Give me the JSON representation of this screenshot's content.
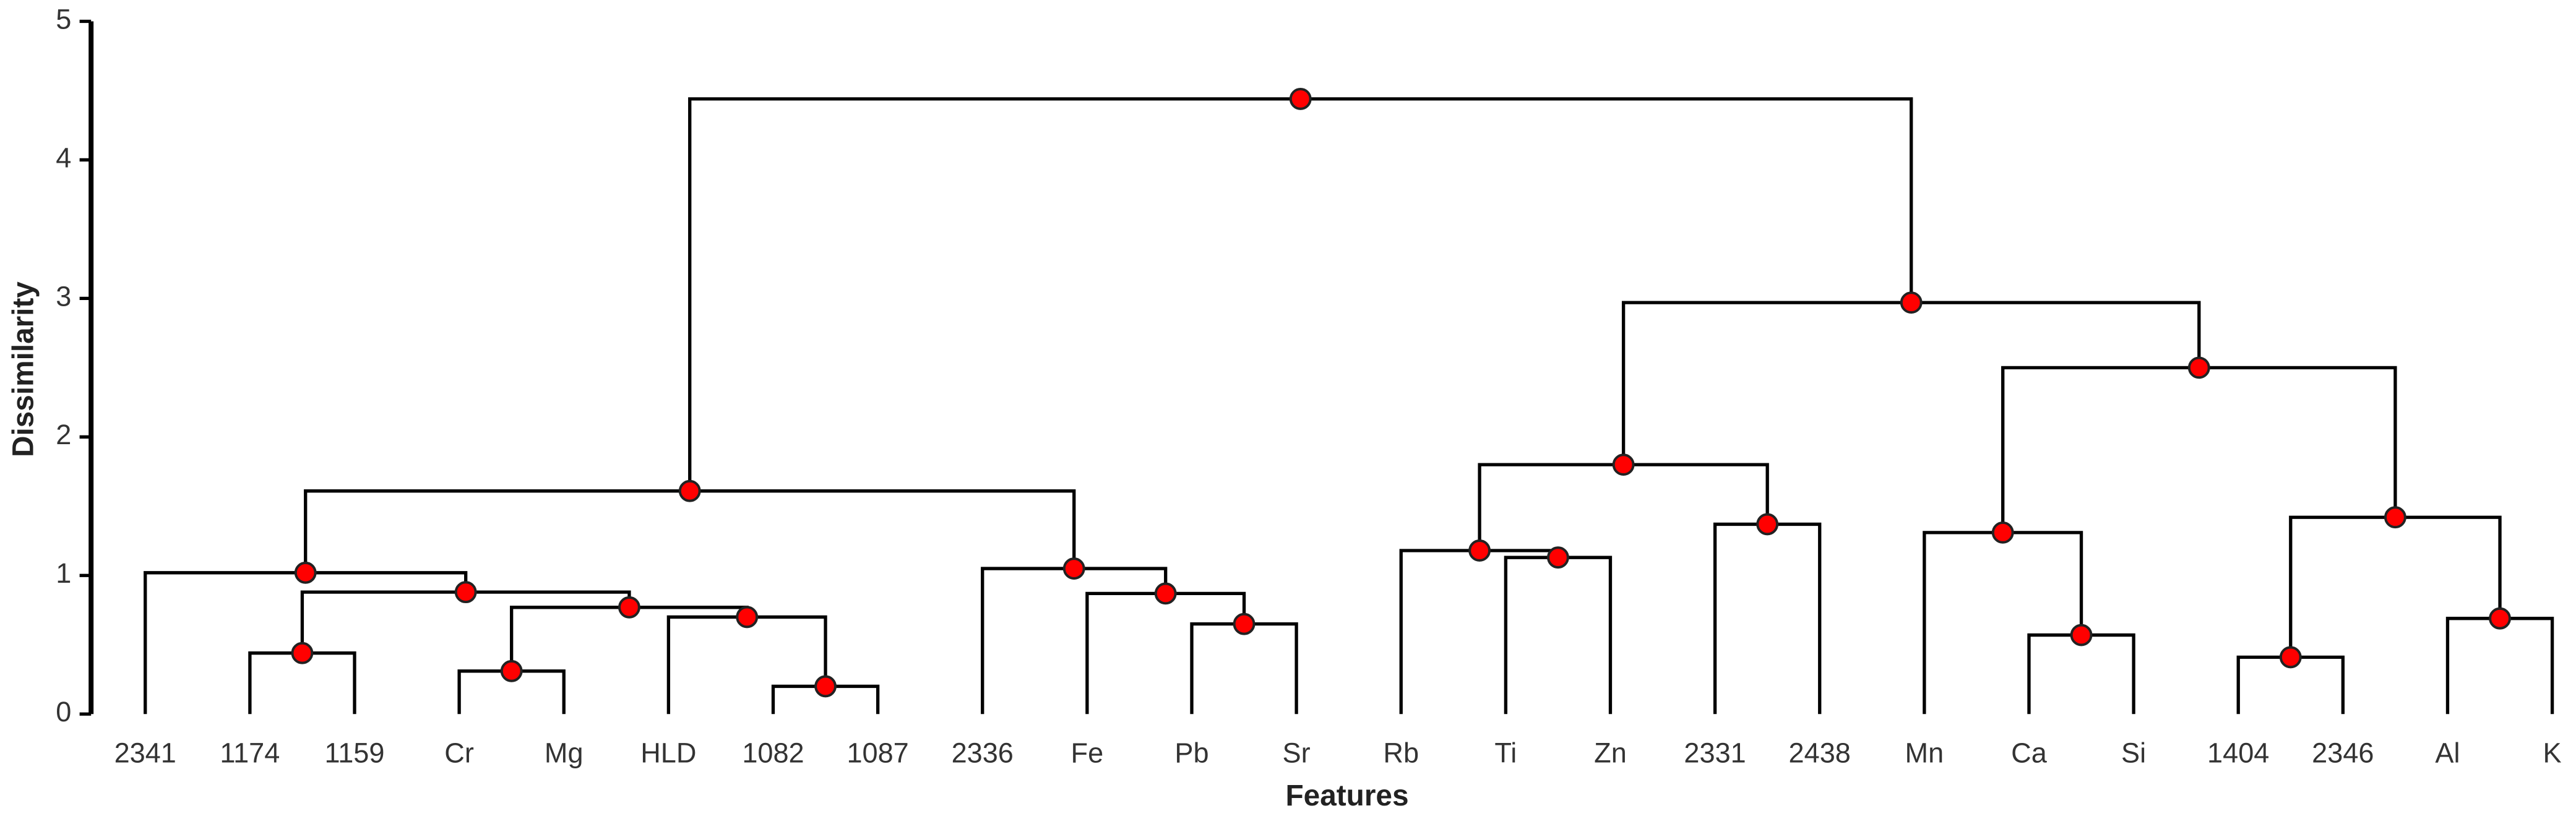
{
  "chart_data": {
    "type": "dendrogram",
    "x_label": "Features",
    "y_label": "Dissimilarity",
    "ylim": [
      0,
      5
    ],
    "yticks": [
      0,
      1,
      2,
      3,
      4,
      5
    ],
    "leaves": [
      "2341",
      "1174",
      "1159",
      "Cr",
      "Mg",
      "HLD",
      "1082",
      "1087",
      "2336",
      "Fe",
      "Pb",
      "Sr",
      "Rb",
      "Ti",
      "Zn",
      "2331",
      "2438",
      "Mn",
      "Ca",
      "Si",
      "1404",
      "2346",
      "Al",
      "K"
    ],
    "merges": [
      {
        "children": [
          1,
          2
        ],
        "height": 0.44
      },
      {
        "children": [
          3,
          4
        ],
        "height": 0.31
      },
      {
        "children": [
          6,
          7
        ],
        "height": 0.2
      },
      {
        "children": [
          5,
          26
        ],
        "height": 0.7
      },
      {
        "children": [
          25,
          27
        ],
        "height": 0.77
      },
      {
        "children": [
          24,
          28
        ],
        "height": 0.88
      },
      {
        "children": [
          0,
          29
        ],
        "height": 1.02
      },
      {
        "children": [
          10,
          11
        ],
        "height": 0.65
      },
      {
        "children": [
          9,
          31
        ],
        "height": 0.87
      },
      {
        "children": [
          8,
          32
        ],
        "height": 1.05
      },
      {
        "children": [
          30,
          33
        ],
        "height": 1.61
      },
      {
        "children": [
          13,
          14
        ],
        "height": 1.13
      },
      {
        "children": [
          12,
          35
        ],
        "height": 1.18
      },
      {
        "children": [
          15,
          16
        ],
        "height": 1.37
      },
      {
        "children": [
          36,
          37
        ],
        "height": 1.8
      },
      {
        "children": [
          18,
          19
        ],
        "height": 0.57
      },
      {
        "children": [
          17,
          39
        ],
        "height": 1.31
      },
      {
        "children": [
          20,
          21
        ],
        "height": 0.41
      },
      {
        "children": [
          22,
          23
        ],
        "height": 0.69
      },
      {
        "children": [
          41,
          42
        ],
        "height": 1.42
      },
      {
        "children": [
          40,
          43
        ],
        "height": 2.5
      },
      {
        "children": [
          38,
          44
        ],
        "height": 2.97
      },
      {
        "children": [
          34,
          45
        ],
        "height": 4.44
      }
    ],
    "line_color": "#000000",
    "node_color": "#ff0000"
  }
}
